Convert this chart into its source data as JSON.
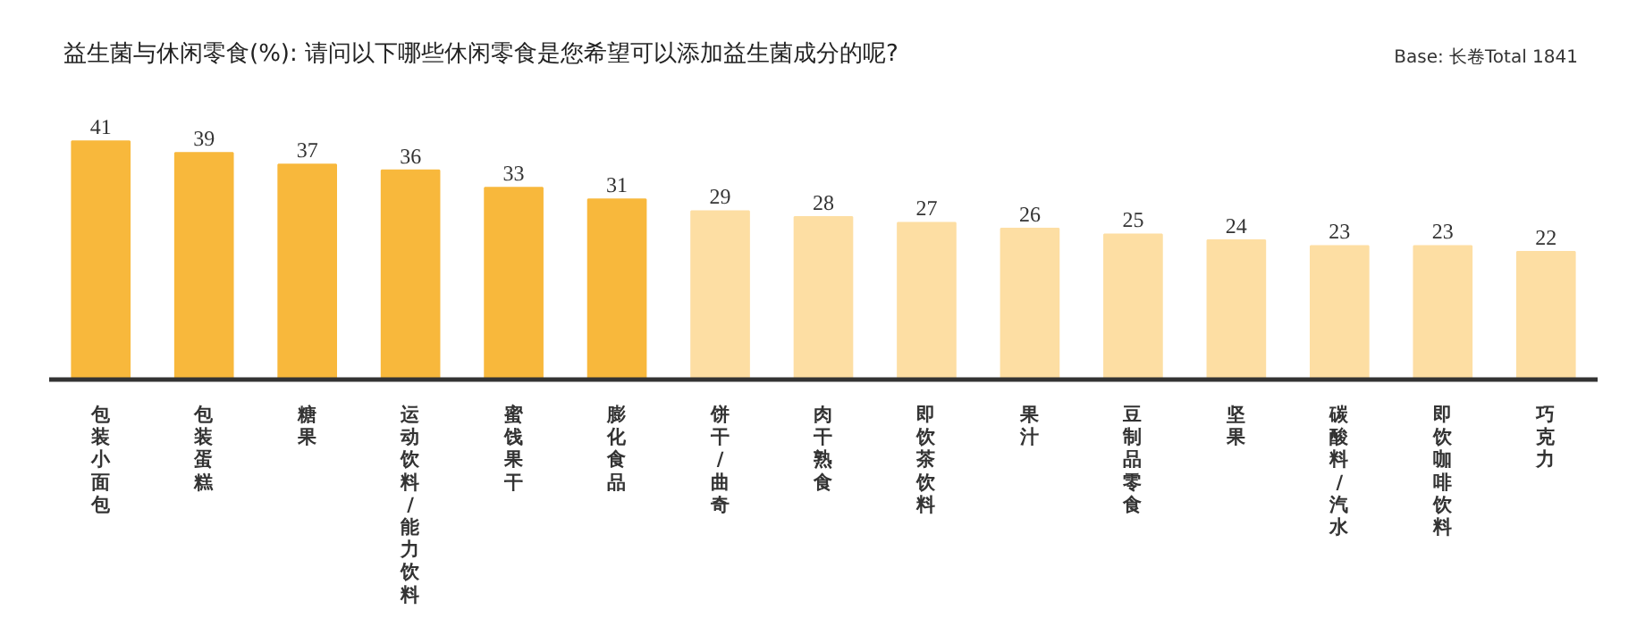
{
  "chart_data": {
    "type": "bar",
    "title": "益生菌与休闲零食(%): 请问以下哪些休闲零食是您希望可以添加益生菌成分的呢?",
    "annotations": [
      "Base: 长卷Total 1841"
    ],
    "categories": [
      "包装小面包",
      "包装蛋糕",
      "糖果",
      "运动饮料/能力饮料",
      "蜜饯果干",
      "膨化食品",
      "饼干/曲奇",
      "肉干熟食",
      "即饮茶饮料",
      "果汁",
      "豆制品零食",
      "坚果",
      "碳酸料/汽水",
      "即饮咖啡饮料",
      "巧克力"
    ],
    "values": [
      41,
      39,
      37,
      36,
      33,
      31,
      29,
      28,
      27,
      26,
      25,
      24,
      23,
      23,
      22
    ],
    "colors": [
      "#f8b83c",
      "#f8b83c",
      "#f8b83c",
      "#f8b83c",
      "#f8b83c",
      "#f8b83c",
      "#fddea3",
      "#fddea3",
      "#fddea3",
      "#fddea3",
      "#fddea3",
      "#fddea3",
      "#fddea3",
      "#fddea3",
      "#fddea3"
    ],
    "data_labels": true,
    "grid": false
  }
}
